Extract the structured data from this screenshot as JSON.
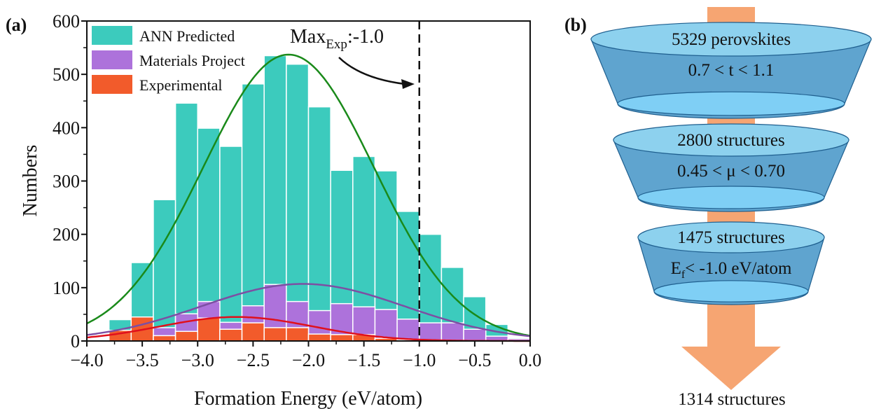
{
  "panel_a_label": "(a)",
  "panel_b_label": "(b)",
  "chart_data": {
    "type": "bar",
    "xlabel": "Formation Energy (eV/atom)",
    "ylabel": "Numbers",
    "xlim": [
      -4.0,
      0.0
    ],
    "ylim": [
      0,
      600
    ],
    "xticks": [
      "-4.0",
      "-3.5",
      "-3.0",
      "-2.5",
      "-2.0",
      "-1.5",
      "-1.0",
      "-0.5",
      "0.0"
    ],
    "yticks": [
      "0",
      "100",
      "200",
      "300",
      "400",
      "500",
      "600"
    ],
    "bin_starts": [
      -3.8,
      -3.6,
      -3.4,
      -3.2,
      -3.0,
      -2.8,
      -2.6,
      -2.4,
      -2.2,
      -2.0,
      -1.8,
      -1.6,
      -1.4,
      -1.2,
      -1.0,
      -0.8,
      -0.6,
      -0.4,
      -0.2
    ],
    "bin_width": 0.2,
    "legend_position": "top-left",
    "series": [
      {
        "name": "ANN  Predicted",
        "color": "#3ccbbd",
        "values": [
          40,
          147,
          265,
          446,
          399,
          365,
          482,
          535,
          519,
          439,
          320,
          346,
          319,
          243,
          200,
          138,
          83,
          31,
          6
        ]
      },
      {
        "name": "Materials Project",
        "color": "#ad72db",
        "values": [
          0,
          0,
          25,
          51,
          74,
          35,
          66,
          106,
          74,
          57,
          70,
          64,
          59,
          41,
          34,
          34,
          22,
          9,
          4
        ]
      },
      {
        "name": "Experimental",
        "color": "#f25b2b",
        "values": [
          20,
          45,
          10,
          18,
          43,
          22,
          34,
          25,
          25,
          13,
          12,
          12,
          5,
          2,
          1,
          0,
          0,
          0,
          0
        ]
      }
    ],
    "fits": [
      {
        "series": "ANN  Predicted",
        "color": "#1a8a1a",
        "amplitude": 537,
        "mean": -2.18,
        "sigma": 0.77
      },
      {
        "series": "Materials Project",
        "color": "#7d4fa3",
        "amplitude": 107,
        "mean": -2.05,
        "sigma": 0.92
      },
      {
        "series": "Experimental",
        "color": "#e0101c",
        "amplitude": 45,
        "mean": -2.65,
        "sigma": 0.69
      }
    ],
    "annotation": {
      "text_main": "Max",
      "text_sub": "Exp",
      "text_value": ":-1.0",
      "vline_x": -1.0
    }
  },
  "funnel": {
    "arrow_color": "#f6a572",
    "stages": [
      {
        "count": "5329 perovskites",
        "criterion": "0.7 < t < 1.1"
      },
      {
        "count": "2800 structures",
        "criterion": "0.45 < μ < 0.70"
      },
      {
        "count": "1475 structures",
        "criterion_main": "E",
        "criterion_sub": "f",
        "criterion_rest": "< -1.0 eV/atom"
      }
    ],
    "result": "1314 structures"
  }
}
